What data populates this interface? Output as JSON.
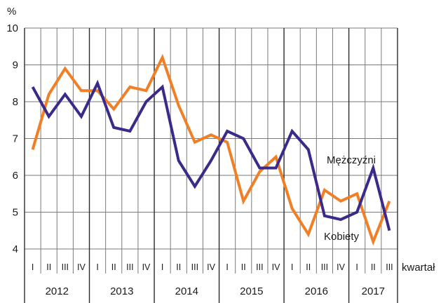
{
  "chart_data": {
    "type": "line",
    "y_unit": "%",
    "x_axis_label": "kwartał",
    "ylim": [
      4,
      10
    ],
    "yticks": [
      4,
      5,
      6,
      7,
      8,
      9,
      10
    ],
    "grid": true,
    "quarters": [
      "I",
      "II",
      "III",
      "IV",
      "I",
      "II",
      "III",
      "IV",
      "I",
      "II",
      "III",
      "IV",
      "I",
      "II",
      "III",
      "IV",
      "I",
      "II",
      "III",
      "IV",
      "I",
      "II",
      "III"
    ],
    "years": [
      {
        "label": "2012",
        "quarters": 4
      },
      {
        "label": "2013",
        "quarters": 4
      },
      {
        "label": "2014",
        "quarters": 4
      },
      {
        "label": "2015",
        "quarters": 4
      },
      {
        "label": "2016",
        "quarters": 4
      },
      {
        "label": "2017",
        "quarters": 3
      }
    ],
    "series": [
      {
        "name": "Mężczyźni",
        "color": "#3b2a8a",
        "values": [
          8.4,
          7.6,
          8.2,
          7.6,
          8.5,
          7.3,
          7.2,
          8.0,
          8.4,
          6.4,
          5.7,
          6.4,
          7.2,
          7.0,
          6.2,
          6.2,
          7.2,
          6.7,
          4.9,
          4.8,
          5.0,
          6.2,
          4.5
        ]
      },
      {
        "name": "Kobiety",
        "color": "#f07f26",
        "values": [
          6.7,
          8.2,
          8.9,
          8.3,
          8.3,
          7.8,
          8.4,
          8.3,
          9.2,
          7.9,
          6.9,
          7.1,
          6.9,
          5.3,
          6.1,
          6.5,
          5.1,
          4.4,
          5.6,
          5.3,
          5.5,
          4.2,
          5.3
        ]
      }
    ]
  }
}
